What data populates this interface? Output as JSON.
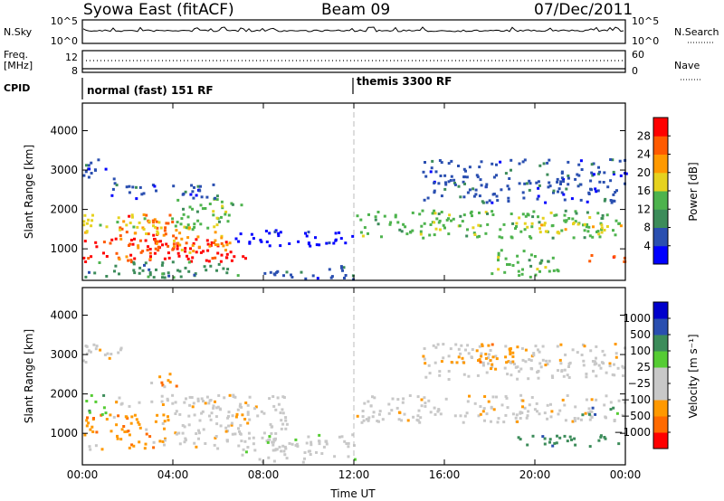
{
  "header": {
    "title": "Syowa East (fitACF)",
    "beam": "Beam 09",
    "date": "07/Dec/2011"
  },
  "noise_panel": {
    "left_label": "N.Sky",
    "left_ticks": [
      "10^5",
      "10^0"
    ],
    "right_ticks": [
      "10^5",
      "10^0"
    ],
    "right_label": "N.Search"
  },
  "freq_panel": {
    "left_label_1": "Freq.",
    "left_label_2": "[MHz]",
    "left_ticks": [
      "12",
      "8"
    ],
    "right_ticks": [
      "60",
      "0"
    ],
    "right_label": "Nave"
  },
  "cpid": {
    "label": "CPID",
    "modes": [
      "normal (fast) 151 RF",
      "themis 3300 RF"
    ]
  },
  "colors": {
    "power": [
      "#0000ff",
      "#2a4fb0",
      "#3c8c5a",
      "#4db34d",
      "#e6d21f",
      "#ff9900",
      "#ff5a00",
      "#ff0000"
    ],
    "velocity": [
      "#ff0000",
      "#ff6a00",
      "#ff9900",
      "#c8c8c8",
      "#c8c8c8",
      "#55cc33",
      "#3c8c5a",
      "#2a4fb0",
      "#0000cc"
    ]
  },
  "chart_data": [
    {
      "type": "heatmap",
      "name": "power",
      "xlabel": "",
      "ylabel": "Slant Range [km]",
      "x_ticks": [
        "00:00",
        "04:00",
        "08:00",
        "12:00",
        "16:00",
        "20:00",
        "00:00"
      ],
      "xlim_hours": [
        0,
        24
      ],
      "ylim": [
        200,
        4700
      ],
      "y_ticks": [
        1000,
        2000,
        3000,
        4000
      ],
      "colorbar": {
        "label": "Power [dB]",
        "ticks": [
          "4",
          "8",
          "12",
          "16",
          "20",
          "24",
          "28"
        ],
        "range": [
          0,
          32
        ]
      },
      "marker_line_hour": 12,
      "regions": [
        {
          "x": [
            0,
            7.3
          ],
          "y": [
            700,
            1300
          ],
          "level": 7
        },
        {
          "x": [
            1.5,
            4
          ],
          "y": [
            700,
            1900
          ],
          "level": 6
        },
        {
          "x": [
            0,
            4
          ],
          "y": [
            1400,
            1900
          ],
          "level": 4
        },
        {
          "x": [
            4,
            6.5
          ],
          "y": [
            900,
            1600
          ],
          "level": 5
        },
        {
          "x": [
            0,
            7
          ],
          "y": [
            300,
            700
          ],
          "level": 2
        },
        {
          "x": [
            4,
            7
          ],
          "y": [
            1500,
            2300
          ],
          "level": 3
        },
        {
          "x": [
            1,
            6
          ],
          "y": [
            2300,
            2700
          ],
          "level": 1
        },
        {
          "x": [
            0,
            1.5
          ],
          "y": [
            2800,
            3300
          ],
          "level": 1
        },
        {
          "x": [
            6.5,
            12
          ],
          "y": [
            1100,
            1500
          ],
          "level": 0
        },
        {
          "x": [
            8,
            12
          ],
          "y": [
            250,
            600
          ],
          "level": 1
        },
        {
          "x": [
            12,
            24
          ],
          "y": [
            1300,
            2000
          ],
          "level": 3
        },
        {
          "x": [
            15,
            24
          ],
          "y": [
            2200,
            3300
          ],
          "level": 1
        },
        {
          "x": [
            19,
            24
          ],
          "y": [
            1400,
            1700
          ],
          "level": 4
        },
        {
          "x": [
            22,
            24
          ],
          "y": [
            700,
            900
          ],
          "level": 6
        },
        {
          "x": [
            18,
            21
          ],
          "y": [
            300,
            1000
          ],
          "level": 3
        }
      ]
    },
    {
      "type": "heatmap",
      "name": "velocity",
      "xlabel": "Time UT",
      "ylabel": "Slant Range [km]",
      "x_ticks": [
        "00:00",
        "04:00",
        "08:00",
        "12:00",
        "16:00",
        "20:00",
        "00:00"
      ],
      "xlim_hours": [
        0,
        24
      ],
      "ylim": [
        200,
        4700
      ],
      "y_ticks": [
        1000,
        2000,
        3000,
        4000
      ],
      "colorbar": {
        "label": "Velocity [m s⁻¹]",
        "ticks": [
          "1000",
          "500",
          "100",
          "25",
          "−25",
          "−100",
          "−500",
          "−1000"
        ],
        "range": [
          -1200,
          1200
        ]
      },
      "marker_line_hour": 12,
      "regions": [
        {
          "x": [
            0,
            4
          ],
          "y": [
            600,
            1500
          ],
          "level": 2
        },
        {
          "x": [
            0,
            1
          ],
          "y": [
            1500,
            2000
          ],
          "level": 5
        },
        {
          "x": [
            4,
            9
          ],
          "y": [
            600,
            2000
          ],
          "level": 3
        },
        {
          "x": [
            1,
            7
          ],
          "y": [
            1700,
            2000
          ],
          "level": 3
        },
        {
          "x": [
            7,
            12
          ],
          "y": [
            300,
            1000
          ],
          "level": 4
        },
        {
          "x": [
            3,
            4.2
          ],
          "y": [
            2200,
            2600
          ],
          "level": 2
        },
        {
          "x": [
            0,
            2
          ],
          "y": [
            2800,
            3300
          ],
          "level": 3
        },
        {
          "x": [
            12,
            24
          ],
          "y": [
            1300,
            2000
          ],
          "level": 3
        },
        {
          "x": [
            15,
            24
          ],
          "y": [
            2400,
            3300
          ],
          "level": 3
        },
        {
          "x": [
            19,
            24
          ],
          "y": [
            700,
            1000
          ],
          "level": 6
        },
        {
          "x": [
            22,
            24
          ],
          "y": [
            1500,
            1700
          ],
          "level": 6
        },
        {
          "x": [
            16,
            19
          ],
          "y": [
            2800,
            3300
          ],
          "level": 2
        }
      ]
    }
  ]
}
